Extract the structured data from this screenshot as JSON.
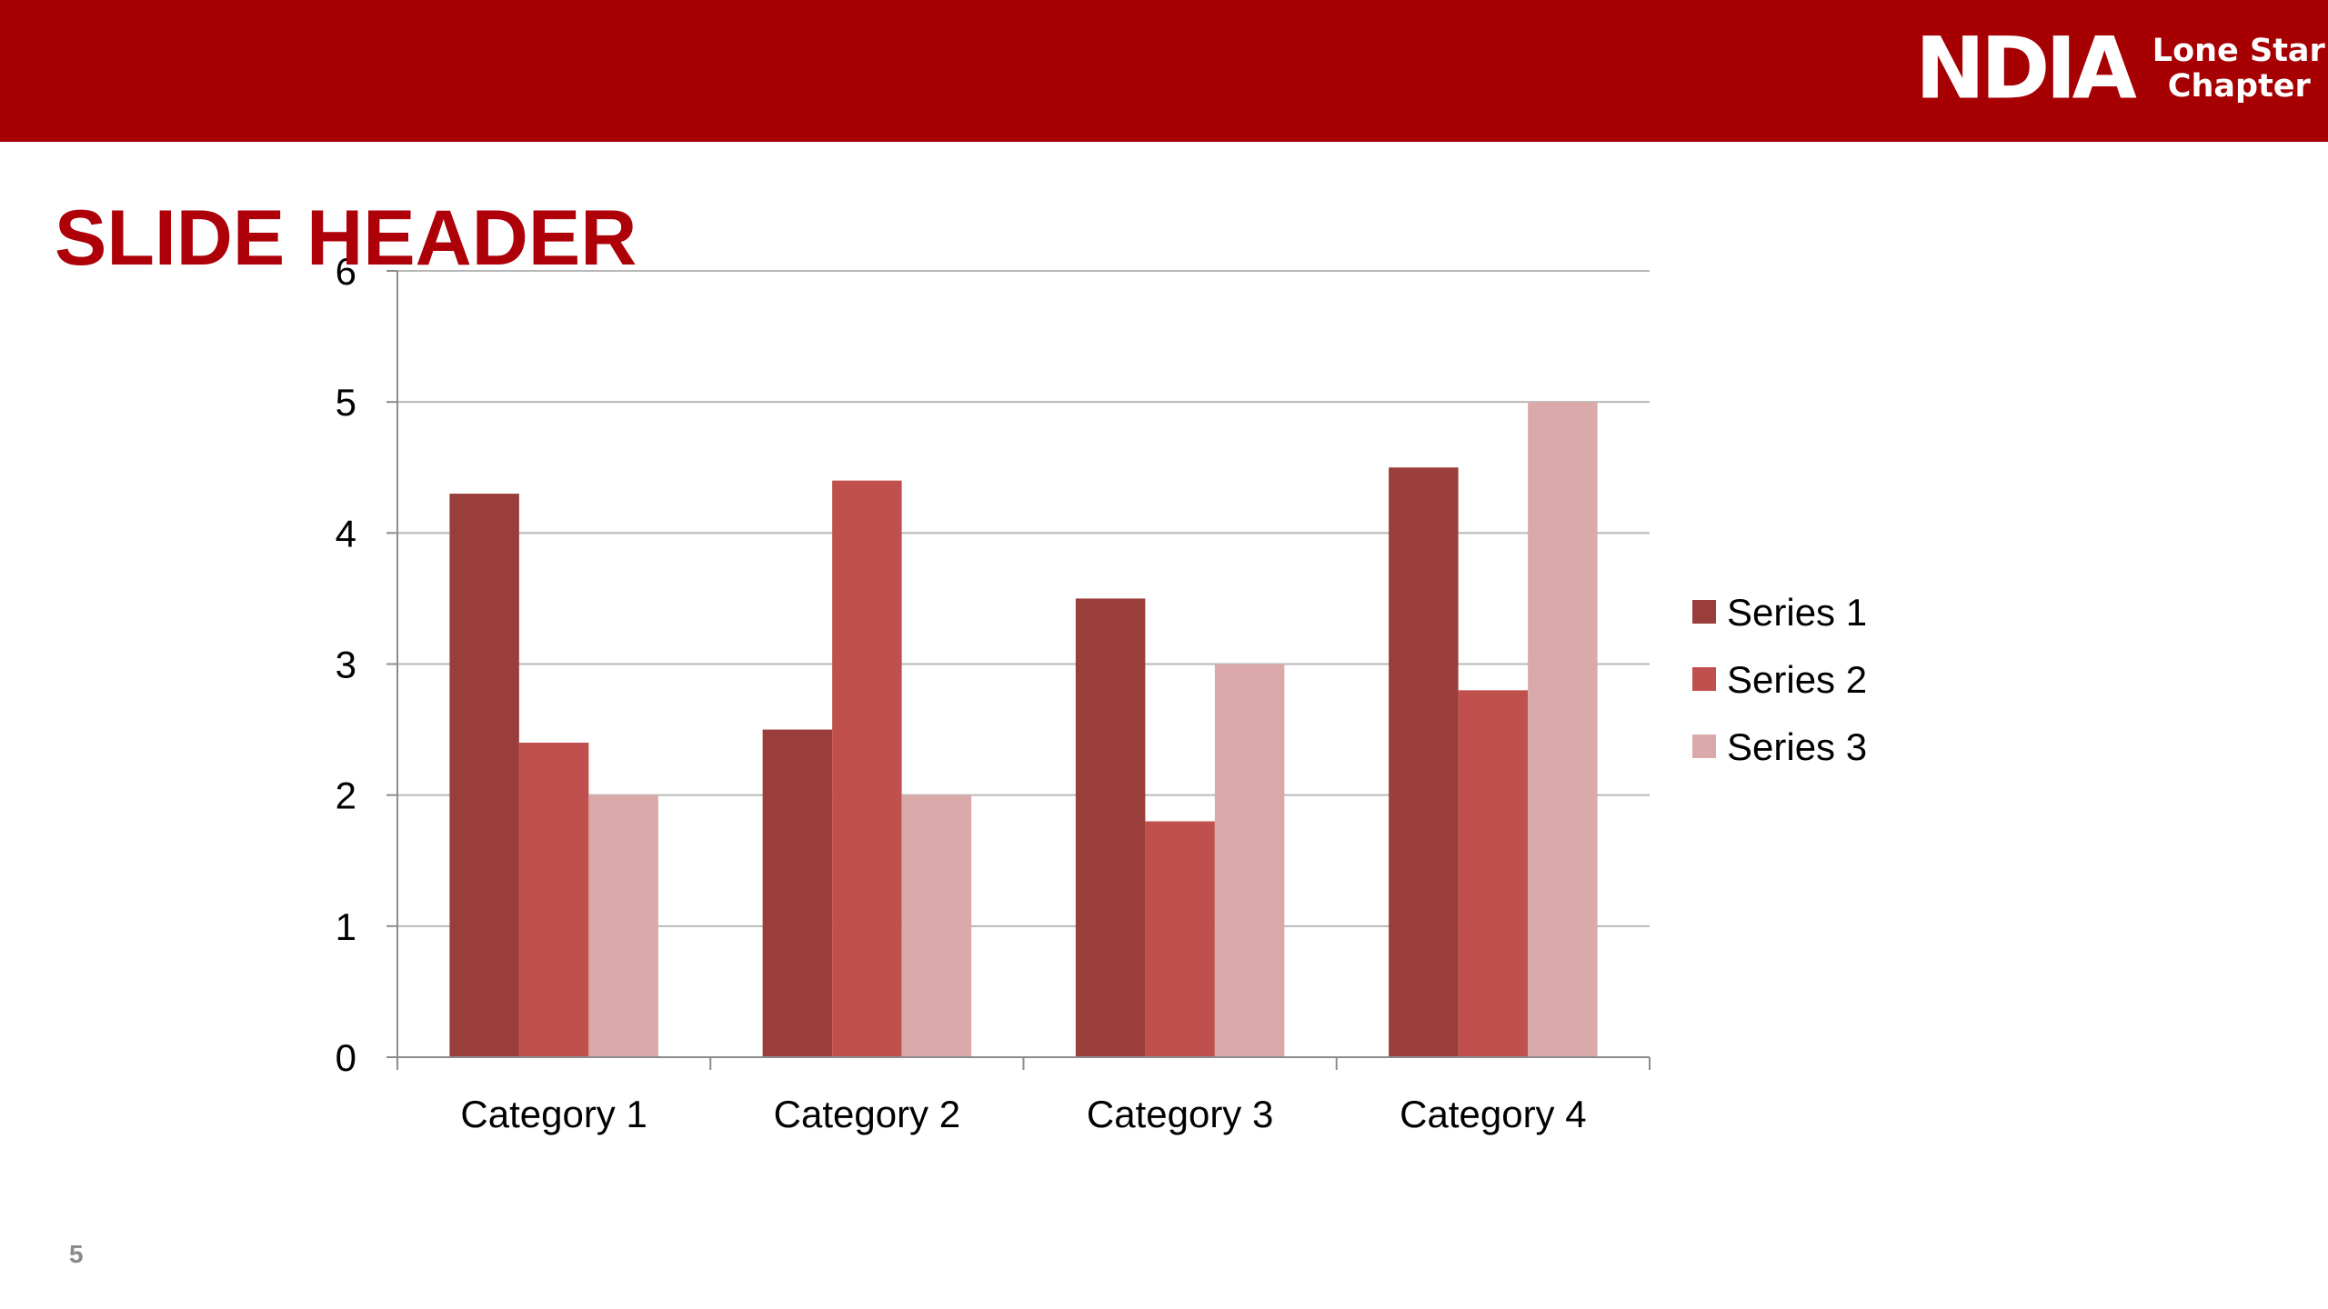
{
  "header": {
    "logo_mark": "NDIA",
    "logo_line1": "Lone Star",
    "logo_line2": "Chapter",
    "bar_color": "#a60003"
  },
  "slide": {
    "title": "SLIDE HEADER",
    "page_number": "5"
  },
  "chart_data": {
    "type": "bar",
    "title": "",
    "xlabel": "",
    "ylabel": "",
    "categories": [
      "Category 1",
      "Category 2",
      "Category 3",
      "Category 4"
    ],
    "series": [
      {
        "name": "Series 1",
        "color": "#9a3e3c",
        "values": [
          4.3,
          2.5,
          3.5,
          4.5
        ]
      },
      {
        "name": "Series 2",
        "color": "#c0504e",
        "values": [
          2.4,
          4.4,
          1.8,
          2.8
        ]
      },
      {
        "name": "Series 3",
        "color": "#d9aaa9",
        "values": [
          2,
          2,
          3,
          5
        ]
      }
    ],
    "ylim": [
      0,
      6
    ],
    "yticks": [
      0,
      1,
      2,
      3,
      4,
      5,
      6
    ],
    "grid": true,
    "legend_position": "right"
  }
}
